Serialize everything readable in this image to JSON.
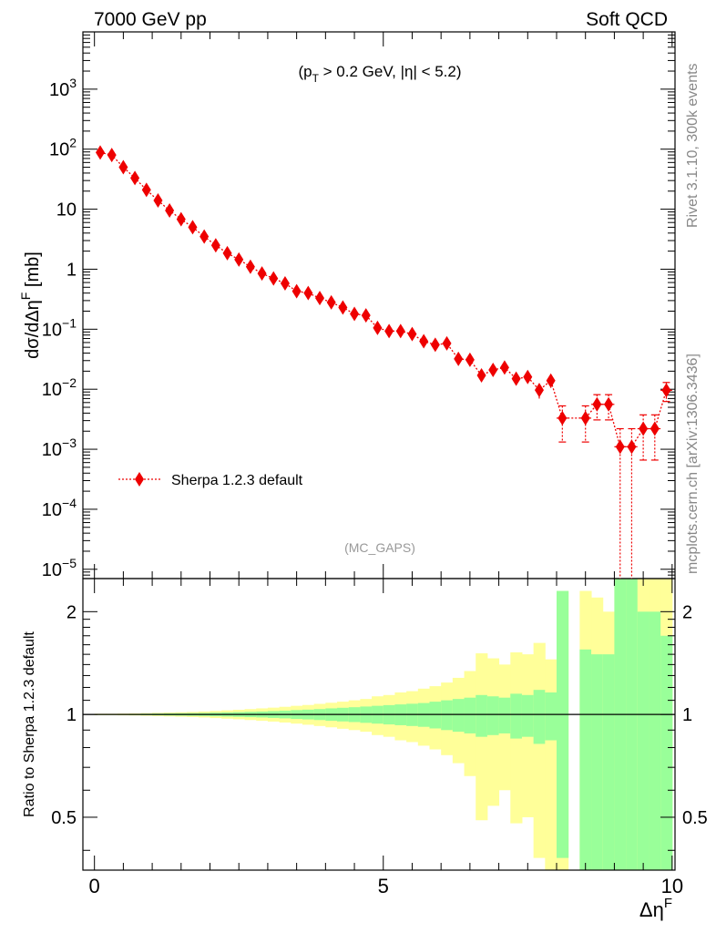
{
  "header": {
    "left": "7000 GeV pp",
    "right": "Soft QCD"
  },
  "side": {
    "rivet": "Rivet 3.1.10,  300k events",
    "mcplots": "mcplots.cern.ch [arXiv:1306.3436]"
  },
  "chart_data": [
    {
      "type": "scatter",
      "annotation": "(pT > 0.2 GeV, |η| < 5.2)",
      "tag": "(MC_GAPS)",
      "ylabel": "dσ/dΔη^F [mb]",
      "xlabel": "",
      "xlim": [
        -0.2,
        10.05
      ],
      "ylim": [
        7e-06,
        9000
      ],
      "yscale": "log",
      "ytick_labels": [
        "10^-5",
        "10^-4",
        "10^-3",
        "10^-2",
        "10^-1",
        "1",
        "10",
        "10^2",
        "10^3"
      ],
      "legend": {
        "position": "left-center",
        "entries": [
          "Sherpa 1.2.3 default"
        ]
      },
      "colors": {
        "series": "#ee0000"
      },
      "series": [
        {
          "name": "Sherpa 1.2.3 default",
          "x": [
            0.1,
            0.3,
            0.5,
            0.7,
            0.9,
            1.1,
            1.3,
            1.5,
            1.7,
            1.9,
            2.1,
            2.3,
            2.5,
            2.7,
            2.9,
            3.1,
            3.3,
            3.5,
            3.7,
            3.9,
            4.1,
            4.3,
            4.5,
            4.7,
            4.9,
            5.1,
            5.3,
            5.5,
            5.7,
            5.9,
            6.1,
            6.3,
            6.5,
            6.7,
            6.9,
            7.1,
            7.3,
            7.5,
            7.7,
            7.9,
            8.1,
            8.5,
            8.7,
            8.9,
            9.1,
            9.3,
            9.5,
            9.7,
            9.9
          ],
          "y": [
            88,
            80,
            50,
            33,
            21,
            14,
            9.5,
            6.8,
            5.0,
            3.5,
            2.5,
            1.85,
            1.45,
            1.1,
            0.85,
            0.7,
            0.58,
            0.43,
            0.4,
            0.33,
            0.28,
            0.23,
            0.18,
            0.17,
            0.105,
            0.093,
            0.093,
            0.083,
            0.063,
            0.055,
            0.058,
            0.032,
            0.031,
            0.017,
            0.021,
            0.023,
            0.015,
            0.016,
            0.0097,
            0.0139,
            0.0033,
            0.0033,
            0.0056,
            0.0056,
            0.0011,
            0.0011,
            0.0022,
            0.0022,
            0.0096
          ],
          "yerr_rel": [
            0.005,
            0.005,
            0.005,
            0.006,
            0.007,
            0.008,
            0.009,
            0.01,
            0.012,
            0.014,
            0.016,
            0.018,
            0.02,
            0.022,
            0.025,
            0.027,
            0.03,
            0.033,
            0.036,
            0.04,
            0.045,
            0.05,
            0.055,
            0.06,
            0.07,
            0.075,
            0.08,
            0.09,
            0.1,
            0.11,
            0.12,
            0.14,
            0.15,
            0.2,
            0.18,
            0.17,
            0.22,
            0.21,
            0.28,
            0.24,
            0.6,
            0.6,
            0.45,
            0.45,
            1.0,
            1.0,
            0.7,
            0.7,
            0.35
          ]
        }
      ]
    },
    {
      "type": "area",
      "ylabel": "Ratio to Sherpa 1.2.3 default",
      "xlabel": "Δη^F",
      "xlim": [
        -0.2,
        10.05
      ],
      "ylim": [
        0.35,
        2.5
      ],
      "yscale": "log",
      "ytick_labels": [
        "0.5",
        "1",
        "2"
      ],
      "xtick_labels": [
        "0",
        "5",
        "10"
      ],
      "colors": {
        "inner": "#99ff99",
        "outer": "#ffff99",
        "reference": "#000000"
      },
      "bins": {
        "x": [
          0.1,
          0.3,
          0.5,
          0.7,
          0.9,
          1.1,
          1.3,
          1.5,
          1.7,
          1.9,
          2.1,
          2.3,
          2.5,
          2.7,
          2.9,
          3.1,
          3.3,
          3.5,
          3.7,
          3.9,
          4.1,
          4.3,
          4.5,
          4.7,
          4.9,
          5.1,
          5.3,
          5.5,
          5.7,
          5.9,
          6.1,
          6.3,
          6.5,
          6.7,
          6.9,
          7.1,
          7.3,
          7.5,
          7.7,
          7.9,
          8.1,
          8.5,
          8.7,
          8.9,
          9.1,
          9.3,
          9.5,
          9.7,
          9.9
        ],
        "inner_up": [
          1.003,
          1.003,
          1.003,
          1.004,
          1.005,
          1.006,
          1.007,
          1.008,
          1.009,
          1.01,
          1.012,
          1.014,
          1.016,
          1.018,
          1.02,
          1.023,
          1.026,
          1.03,
          1.033,
          1.037,
          1.042,
          1.046,
          1.05,
          1.055,
          1.06,
          1.065,
          1.07,
          1.075,
          1.08,
          1.09,
          1.1,
          1.11,
          1.12,
          1.14,
          1.13,
          1.12,
          1.15,
          1.14,
          1.18,
          1.16,
          2.3,
          1.55,
          1.5,
          1.5,
          2.5,
          2.5,
          2.0,
          2.0,
          1.7
        ],
        "inner_down": [
          0.997,
          0.997,
          0.997,
          0.996,
          0.995,
          0.994,
          0.993,
          0.992,
          0.991,
          0.99,
          0.988,
          0.986,
          0.984,
          0.982,
          0.98,
          0.977,
          0.974,
          0.97,
          0.967,
          0.963,
          0.958,
          0.954,
          0.95,
          0.945,
          0.94,
          0.935,
          0.93,
          0.925,
          0.92,
          0.91,
          0.9,
          0.89,
          0.88,
          0.86,
          0.87,
          0.88,
          0.85,
          0.86,
          0.82,
          0.84,
          0.38,
          0.35,
          0.35,
          0.35,
          0.35,
          0.35,
          0.35,
          0.35,
          0.35
        ],
        "outer_up": [
          1.005,
          1.005,
          1.006,
          1.007,
          1.009,
          1.011,
          1.013,
          1.015,
          1.017,
          1.02,
          1.024,
          1.028,
          1.032,
          1.037,
          1.042,
          1.047,
          1.053,
          1.06,
          1.066,
          1.074,
          1.082,
          1.09,
          1.1,
          1.11,
          1.13,
          1.14,
          1.16,
          1.17,
          1.19,
          1.21,
          1.24,
          1.28,
          1.34,
          1.51,
          1.46,
          1.4,
          1.52,
          1.5,
          1.62,
          1.45,
          2.3,
          2.3,
          2.2,
          2.0,
          2.5,
          2.5,
          2.5,
          2.5,
          2.5
        ],
        "outer_down": [
          0.995,
          0.995,
          0.994,
          0.993,
          0.991,
          0.989,
          0.987,
          0.985,
          0.983,
          0.98,
          0.976,
          0.972,
          0.968,
          0.963,
          0.958,
          0.953,
          0.947,
          0.94,
          0.933,
          0.925,
          0.917,
          0.908,
          0.9,
          0.89,
          0.87,
          0.86,
          0.84,
          0.83,
          0.81,
          0.79,
          0.76,
          0.72,
          0.66,
          0.49,
          0.54,
          0.6,
          0.48,
          0.5,
          0.38,
          0.35,
          0.35,
          0.35,
          0.35,
          0.35,
          0.35,
          0.35,
          0.35,
          0.35,
          0.35
        ]
      }
    }
  ]
}
